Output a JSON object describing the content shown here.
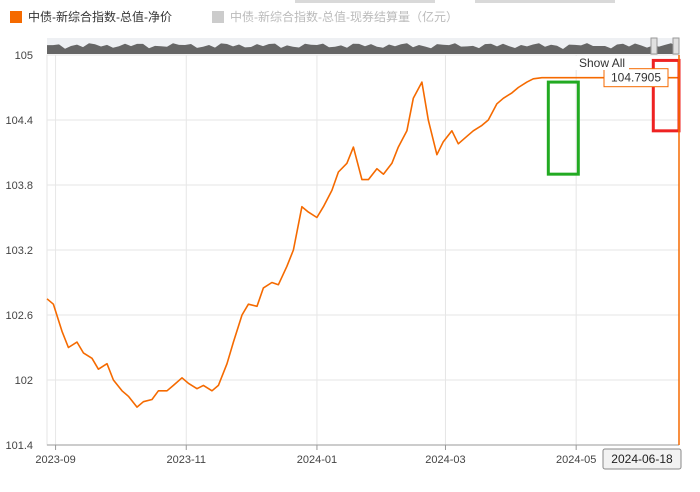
{
  "legend": [
    {
      "label": "中债-新综合指数-总值-净价",
      "color": "#f56a00",
      "active": true
    },
    {
      "label": "中债-新综合指数-总值-现券结算量（亿元）",
      "color": "#cccccc",
      "active": false
    }
  ],
  "controls": {
    "show_all": "Show All"
  },
  "tooltip": {
    "value": "104.7905",
    "date": "2024-06-18"
  },
  "chart_data": {
    "type": "line",
    "series": [
      {
        "name": "中债-新综合指数-总值-净价",
        "color": "#f56a00",
        "x": [
          "2023-08-28",
          "2023-08-31",
          "2023-09-04",
          "2023-09-07",
          "2023-09-11",
          "2023-09-14",
          "2023-09-18",
          "2023-09-21",
          "2023-09-25",
          "2023-09-28",
          "2023-10-02",
          "2023-10-05",
          "2023-10-09",
          "2023-10-12",
          "2023-10-16",
          "2023-10-19",
          "2023-10-23",
          "2023-10-26",
          "2023-10-30",
          "2023-11-02",
          "2023-11-06",
          "2023-11-09",
          "2023-11-13",
          "2023-11-16",
          "2023-11-20",
          "2023-11-23",
          "2023-11-27",
          "2023-11-30",
          "2023-12-04",
          "2023-12-07",
          "2023-12-11",
          "2023-12-14",
          "2023-12-18",
          "2023-12-21",
          "2023-12-25",
          "2023-12-28",
          "2024-01-01",
          "2024-01-04",
          "2024-01-08",
          "2024-01-11",
          "2024-01-15",
          "2024-01-18",
          "2024-01-22",
          "2024-01-25",
          "2024-01-29",
          "2024-02-01",
          "2024-02-05",
          "2024-02-08",
          "2024-02-12",
          "2024-02-15",
          "2024-02-19",
          "2024-02-22",
          "2024-02-26",
          "2024-02-29",
          "2024-03-04",
          "2024-03-07",
          "2024-03-11",
          "2024-03-14",
          "2024-03-18",
          "2024-03-21",
          "2024-03-25",
          "2024-03-28",
          "2024-04-01",
          "2024-04-04",
          "2024-04-08",
          "2024-04-11",
          "2024-04-15",
          "2024-04-18",
          "2024-04-22",
          "2024-04-25",
          "2024-04-29",
          "2024-05-02",
          "2024-05-06",
          "2024-05-09",
          "2024-05-13",
          "2024-05-16",
          "2024-05-20",
          "2024-05-23",
          "2024-05-27",
          "2024-05-30",
          "2024-06-03",
          "2024-06-06",
          "2024-06-10",
          "2024-06-13",
          "2024-06-18"
        ],
        "values": [
          102.75,
          102.7,
          102.45,
          102.3,
          102.35,
          102.25,
          102.2,
          102.1,
          102.15,
          102.0,
          101.9,
          101.85,
          101.75,
          101.8,
          101.82,
          101.9,
          101.9,
          101.95,
          102.02,
          101.97,
          101.92,
          101.95,
          101.9,
          101.95,
          102.15,
          102.35,
          102.6,
          102.7,
          102.68,
          102.85,
          102.9,
          102.88,
          103.05,
          103.2,
          103.6,
          103.55,
          103.5,
          103.6,
          103.75,
          103.92,
          104.0,
          104.15,
          103.85,
          103.85,
          103.95,
          103.9,
          104.0,
          104.15,
          104.3,
          104.6,
          104.75,
          104.4,
          104.08,
          104.2,
          104.3,
          104.18,
          104.25,
          104.3,
          104.35,
          104.4,
          104.55,
          104.6,
          104.65,
          104.7,
          104.75,
          104.78,
          104.79,
          104.79,
          104.79,
          104.79,
          104.79,
          104.79,
          104.79,
          104.79,
          104.79,
          104.79,
          104.79,
          104.79,
          104.79,
          104.79,
          104.79,
          104.79,
          104.79,
          104.79,
          104.7905
        ]
      }
    ],
    "y_ticks": [
      "105",
      "104.4",
      "103.8",
      "103.2",
      "102.6",
      "102",
      "101.4"
    ],
    "x_ticks": [
      "2023-09",
      "2023-11",
      "2024-01",
      "2024-03",
      "2024-05"
    ],
    "ylim": [
      101.4,
      105
    ],
    "grid": true,
    "title": "",
    "xlabel": "",
    "ylabel": "",
    "highlights": [
      {
        "label": "",
        "color": "#22aa22",
        "x_range": [
          "2024-04-18",
          "2024-05-02"
        ],
        "y_range": [
          103.9,
          104.75
        ]
      },
      {
        "label": "",
        "color": "#ee2222",
        "x_range": [
          "2024-06-06",
          "2024-06-18"
        ],
        "y_range": [
          104.3,
          104.95
        ]
      }
    ]
  }
}
